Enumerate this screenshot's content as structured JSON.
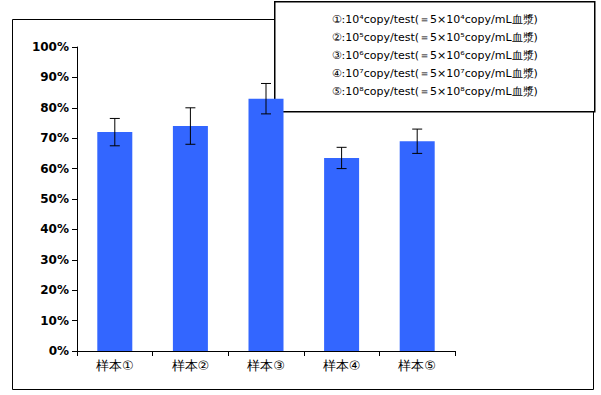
{
  "chart_data": {
    "type": "bar",
    "categories": [
      "样本①",
      "样本②",
      "样本③",
      "样本④",
      "样本⑤"
    ],
    "values": [
      72,
      74,
      83,
      63.5,
      69
    ],
    "errors": [
      4.5,
      6,
      5,
      3.5,
      4
    ],
    "color": "#3366ff",
    "ylim": [
      0,
      100
    ],
    "yticks": [
      {
        "value": 0,
        "label": "0%"
      },
      {
        "value": 10,
        "label": "10%"
      },
      {
        "value": 20,
        "label": "20%"
      },
      {
        "value": 30,
        "label": "30%"
      },
      {
        "value": 40,
        "label": "40%"
      },
      {
        "value": 50,
        "label": "50%"
      },
      {
        "value": 60,
        "label": "60%"
      },
      {
        "value": 70,
        "label": "70%"
      },
      {
        "value": 80,
        "label": "80%"
      },
      {
        "value": 90,
        "label": "90%"
      },
      {
        "value": 100,
        "label": "100%"
      }
    ],
    "grid": false,
    "annotations": [
      "①:10⁴copy/test(＝5×10⁴copy/mL血漿)",
      "②:10⁵copy/test(＝5×10⁵copy/mL血漿)",
      "③:10⁶copy/test(＝5×10⁶copy/mL血漿)",
      "④:10⁷copy/test(＝5×10⁷copy/mL血漿)",
      "⑤:10⁸copy/test(＝5×10⁸copy/mL血漿)"
    ]
  }
}
